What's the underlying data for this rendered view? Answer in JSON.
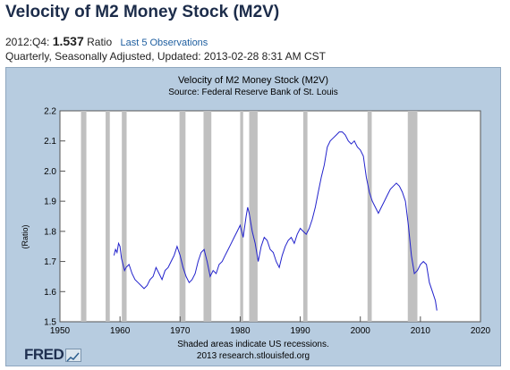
{
  "page": {
    "title": "Velocity of M2 Money Stock (M2V)",
    "period": "2012:Q4:",
    "latest_value": "1.537",
    "units": "Ratio",
    "link_label": "Last 5 Observations",
    "subtitle": "Quarterly, Seasonally Adjusted, Updated: 2013-02-28 8:31 AM CST"
  },
  "footer": {
    "note": "Shaded areas indicate US recessions.",
    "source_url": "2013 research.stlouisfed.org",
    "logo_text": "FRED"
  },
  "colors": {
    "frame_bg": "#b7cce0",
    "plot_bg": "#ffffff",
    "line": "#2222cc",
    "recession": "#c0c0c0"
  },
  "chart_data": {
    "type": "line",
    "title": "Velocity of M2 Money Stock (M2V)",
    "subtitle": "Source: Federal Reserve Bank of St. Louis",
    "xlabel": "",
    "ylabel": "(Ratio)",
    "xlim": [
      1950,
      2020
    ],
    "ylim": [
      1.5,
      2.2
    ],
    "xticks": [
      "1950",
      "1960",
      "1970",
      "1980",
      "1990",
      "2000",
      "2010",
      "2020"
    ],
    "yticks": [
      "1.5",
      "1.6",
      "1.7",
      "1.8",
      "1.9",
      "2.0",
      "2.1",
      "2.2"
    ],
    "grid": false,
    "recessions": [
      [
        1953.5,
        1954.4
      ],
      [
        1957.6,
        1958.3
      ],
      [
        1960.3,
        1961.1
      ],
      [
        1969.9,
        1970.9
      ],
      [
        1973.9,
        1975.2
      ],
      [
        1980.0,
        1980.5
      ],
      [
        1981.5,
        1982.9
      ],
      [
        1990.5,
        1991.2
      ],
      [
        2001.2,
        2001.9
      ],
      [
        2007.9,
        2009.5
      ]
    ],
    "series": [
      {
        "x": [
          1959.0,
          1959.25,
          1959.5,
          1959.75,
          1960.0,
          1960.25,
          1960.5,
          1960.75,
          1961.0,
          1961.5,
          1962.0,
          1962.5,
          1963.0,
          1963.5,
          1964.0,
          1964.5,
          1965.0,
          1965.5,
          1966.0,
          1966.5,
          1967.0,
          1967.5,
          1968.0,
          1968.5,
          1969.0,
          1969.5,
          1970.0,
          1970.5,
          1971.0,
          1971.5,
          1972.0,
          1972.5,
          1973.0,
          1973.5,
          1974.0,
          1974.5,
          1975.0,
          1975.5,
          1976.0,
          1976.5,
          1977.0,
          1977.5,
          1978.0,
          1978.5,
          1979.0,
          1979.5,
          1980.0,
          1980.5,
          1981.0,
          1981.25,
          1981.5,
          1982.0,
          1982.5,
          1983.0,
          1983.5,
          1984.0,
          1984.5,
          1985.0,
          1985.5,
          1986.0,
          1986.5,
          1987.0,
          1987.5,
          1988.0,
          1988.5,
          1989.0,
          1989.5,
          1990.0,
          1990.5,
          1991.0,
          1991.5,
          1992.0,
          1992.5,
          1993.0,
          1993.5,
          1994.0,
          1994.5,
          1995.0,
          1995.5,
          1996.0,
          1996.5,
          1997.0,
          1997.5,
          1998.0,
          1998.5,
          1999.0,
          1999.5,
          2000.0,
          2000.5,
          2001.0,
          2001.5,
          2002.0,
          2002.5,
          2003.0,
          2003.5,
          2004.0,
          2004.5,
          2005.0,
          2005.5,
          2006.0,
          2006.5,
          2007.0,
          2007.5,
          2008.0,
          2008.5,
          2009.0,
          2009.5,
          2010.0,
          2010.5,
          2011.0,
          2011.5,
          2012.0,
          2012.5,
          2012.75
        ],
        "values": [
          1.72,
          1.74,
          1.73,
          1.76,
          1.75,
          1.71,
          1.69,
          1.67,
          1.68,
          1.69,
          1.66,
          1.64,
          1.63,
          1.62,
          1.61,
          1.62,
          1.64,
          1.65,
          1.68,
          1.66,
          1.64,
          1.67,
          1.68,
          1.7,
          1.72,
          1.75,
          1.72,
          1.68,
          1.65,
          1.63,
          1.64,
          1.66,
          1.7,
          1.73,
          1.74,
          1.7,
          1.65,
          1.67,
          1.66,
          1.69,
          1.7,
          1.72,
          1.74,
          1.76,
          1.78,
          1.8,
          1.82,
          1.78,
          1.85,
          1.88,
          1.86,
          1.8,
          1.76,
          1.7,
          1.75,
          1.78,
          1.77,
          1.74,
          1.73,
          1.7,
          1.68,
          1.72,
          1.75,
          1.77,
          1.78,
          1.76,
          1.79,
          1.81,
          1.8,
          1.79,
          1.81,
          1.84,
          1.88,
          1.93,
          1.98,
          2.02,
          2.08,
          2.1,
          2.11,
          2.12,
          2.13,
          2.13,
          2.12,
          2.1,
          2.09,
          2.1,
          2.08,
          2.07,
          2.05,
          1.98,
          1.93,
          1.9,
          1.88,
          1.86,
          1.88,
          1.9,
          1.92,
          1.94,
          1.95,
          1.96,
          1.95,
          1.93,
          1.9,
          1.82,
          1.72,
          1.66,
          1.67,
          1.69,
          1.7,
          1.69,
          1.63,
          1.6,
          1.57,
          1.537
        ]
      }
    ]
  }
}
